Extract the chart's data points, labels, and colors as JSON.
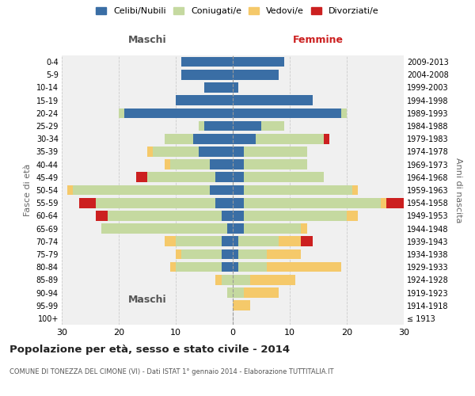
{
  "age_groups": [
    "100+",
    "95-99",
    "90-94",
    "85-89",
    "80-84",
    "75-79",
    "70-74",
    "65-69",
    "60-64",
    "55-59",
    "50-54",
    "45-49",
    "40-44",
    "35-39",
    "30-34",
    "25-29",
    "20-24",
    "15-19",
    "10-14",
    "5-9",
    "0-4"
  ],
  "birth_years": [
    "≤ 1913",
    "1914-1918",
    "1919-1923",
    "1924-1928",
    "1929-1933",
    "1934-1938",
    "1939-1943",
    "1944-1948",
    "1949-1953",
    "1954-1958",
    "1959-1963",
    "1964-1968",
    "1969-1973",
    "1974-1978",
    "1979-1983",
    "1984-1988",
    "1989-1993",
    "1994-1998",
    "1999-2003",
    "2004-2008",
    "2009-2013"
  ],
  "males": {
    "celibi": [
      0,
      0,
      0,
      0,
      2,
      2,
      2,
      1,
      2,
      3,
      4,
      3,
      4,
      6,
      7,
      5,
      19,
      10,
      5,
      9,
      9
    ],
    "coniugati": [
      0,
      0,
      1,
      2,
      8,
      7,
      8,
      22,
      20,
      21,
      24,
      12,
      7,
      8,
      5,
      1,
      1,
      0,
      0,
      0,
      0
    ],
    "vedovi": [
      0,
      0,
      0,
      1,
      1,
      1,
      2,
      0,
      0,
      0,
      1,
      0,
      1,
      1,
      0,
      0,
      0,
      0,
      0,
      0,
      0
    ],
    "divorziati": [
      0,
      0,
      0,
      0,
      0,
      0,
      0,
      0,
      2,
      3,
      0,
      2,
      0,
      0,
      0,
      0,
      0,
      0,
      0,
      0,
      0
    ]
  },
  "females": {
    "celibi": [
      0,
      0,
      0,
      0,
      1,
      1,
      1,
      2,
      2,
      2,
      2,
      2,
      2,
      2,
      4,
      5,
      19,
      14,
      1,
      8,
      9
    ],
    "coniugati": [
      0,
      0,
      2,
      3,
      5,
      5,
      7,
      10,
      18,
      24,
      19,
      14,
      11,
      11,
      12,
      4,
      1,
      0,
      0,
      0,
      0
    ],
    "vedovi": [
      0,
      3,
      6,
      8,
      13,
      6,
      4,
      1,
      2,
      1,
      1,
      0,
      0,
      0,
      0,
      0,
      0,
      0,
      0,
      0,
      0
    ],
    "divorziati": [
      0,
      0,
      0,
      0,
      0,
      0,
      2,
      0,
      0,
      3,
      0,
      0,
      0,
      0,
      1,
      0,
      0,
      0,
      0,
      0,
      0
    ]
  },
  "color_celibi": "#3a6ea5",
  "color_coniugati": "#c5d9a0",
  "color_vedovi": "#f5c96a",
  "color_divorziati": "#cc2020",
  "bg_color": "#f0f0f0",
  "grid_color": "#cccccc",
  "title": "Popolazione per età, sesso e stato civile - 2014",
  "subtitle": "COMUNE DI TONEZZA DEL CIMONE (VI) - Dati ISTAT 1° gennaio 2014 - Elaborazione TUTTITALIA.IT",
  "xlabel_left": "Maschi",
  "xlabel_right": "Femmine",
  "ylabel_left": "Fasce di età",
  "ylabel_right": "Anni di nascita",
  "xlim": 30,
  "legend_labels": [
    "Celibi/Nubili",
    "Coniugati/e",
    "Vedovi/e",
    "Divorziati/e"
  ]
}
